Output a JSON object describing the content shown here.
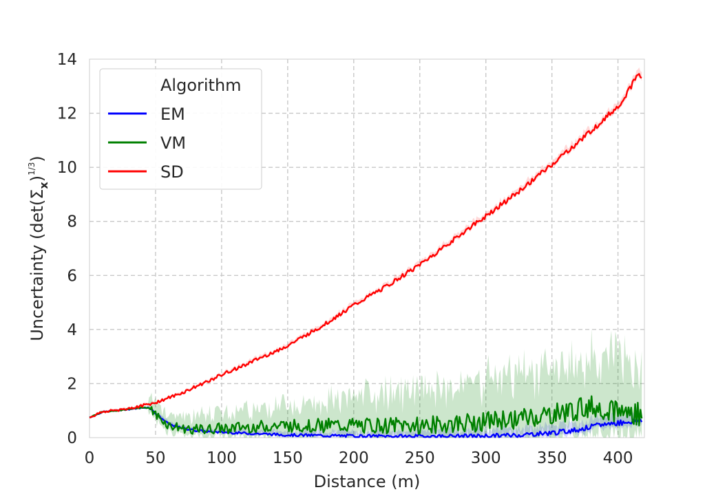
{
  "chart_data": {
    "type": "line",
    "xlabel": "Distance (m)",
    "ylabel": "Uncertainty (det(Σ",
    "ylabel_sub": "x",
    "ylabel_exp_num": "1",
    "ylabel_exp_den": "3",
    "ylabel_close": ")",
    "xlim": [
      0,
      420
    ],
    "ylim": [
      0,
      14
    ],
    "xticks": [
      0,
      50,
      100,
      150,
      200,
      250,
      300,
      350,
      400
    ],
    "yticks": [
      0,
      2,
      4,
      6,
      8,
      10,
      12,
      14
    ],
    "grid": true,
    "legend": {
      "title": "Algorithm",
      "placement": "top-left"
    },
    "series": [
      {
        "name": "EM",
        "color": "#0000ff",
        "x": [
          0,
          10,
          20,
          30,
          40,
          45,
          50,
          55,
          60,
          70,
          80,
          90,
          100,
          125,
          150,
          175,
          200,
          225,
          250,
          275,
          300,
          325,
          350,
          360,
          370,
          380,
          390,
          400,
          410,
          418
        ],
        "y": [
          0.75,
          0.95,
          1.0,
          1.05,
          1.1,
          1.12,
          0.9,
          0.7,
          0.5,
          0.35,
          0.27,
          0.22,
          0.2,
          0.15,
          0.1,
          0.08,
          0.06,
          0.05,
          0.05,
          0.05,
          0.06,
          0.1,
          0.18,
          0.23,
          0.3,
          0.4,
          0.5,
          0.55,
          0.6,
          0.65
        ]
      },
      {
        "name": "VM",
        "color": "#008000",
        "x": [
          0,
          10,
          20,
          30,
          40,
          45,
          50,
          55,
          60,
          70,
          80,
          90,
          100,
          125,
          150,
          175,
          200,
          225,
          250,
          275,
          300,
          325,
          350,
          360,
          370,
          380,
          390,
          400,
          410,
          418
        ],
        "y": [
          0.75,
          0.95,
          1.0,
          1.05,
          1.12,
          1.1,
          0.85,
          0.65,
          0.45,
          0.35,
          0.3,
          0.3,
          0.35,
          0.4,
          0.45,
          0.45,
          0.45,
          0.45,
          0.45,
          0.5,
          0.6,
          0.7,
          0.85,
          0.95,
          1.05,
          1.15,
          1.1,
          1.0,
          0.9,
          0.85
        ]
      },
      {
        "name": "SD",
        "color": "#ff0000",
        "x": [
          0,
          10,
          20,
          30,
          40,
          50,
          60,
          70,
          80,
          90,
          100,
          125,
          150,
          175,
          200,
          225,
          250,
          275,
          300,
          325,
          350,
          375,
          400,
          405,
          410,
          415,
          418
        ],
        "y": [
          0.75,
          0.95,
          1.02,
          1.08,
          1.18,
          1.3,
          1.47,
          1.65,
          1.87,
          2.1,
          2.32,
          2.85,
          3.4,
          4.1,
          4.9,
          5.6,
          6.4,
          7.3,
          8.2,
          9.1,
          10.1,
          11.15,
          12.25,
          12.6,
          13.0,
          13.45,
          13.3
        ]
      }
    ]
  }
}
